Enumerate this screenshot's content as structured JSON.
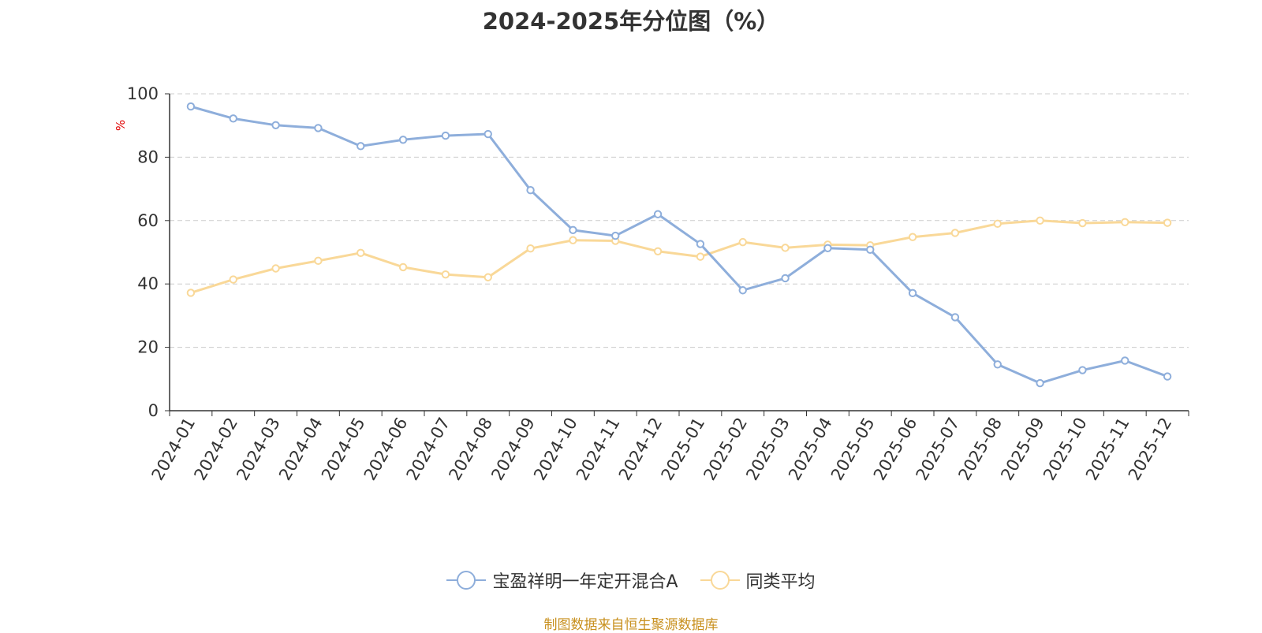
{
  "chart_data": {
    "type": "line",
    "title": "2024-2025年分位图（%）",
    "ylabel": "%",
    "xlabel": "",
    "ylim": [
      0,
      100
    ],
    "yticks": [
      0,
      20,
      40,
      60,
      80,
      100
    ],
    "grid": "horizontal dashed",
    "legend_position": "bottom",
    "categories": [
      "2024-01",
      "2024-02",
      "2024-03",
      "2024-04",
      "2024-05",
      "2024-06",
      "2024-07",
      "2024-08",
      "2024-09",
      "2024-10",
      "2024-11",
      "2024-12",
      "2025-01",
      "2025-02",
      "2025-03",
      "2025-04",
      "2025-05",
      "2025-06",
      "2025-07",
      "2025-08",
      "2025-09",
      "2025-10",
      "2025-11",
      "2025-12"
    ],
    "series": [
      {
        "name": "宝盈祥明一年定开混合A",
        "color": "#8eaedb",
        "values": [
          96,
          92.2,
          90.1,
          89.2,
          83.5,
          85.5,
          86.8,
          87.3,
          69.6,
          57,
          55.2,
          62,
          52.6,
          38,
          41.8,
          51.3,
          50.8,
          37.1,
          29.5,
          14.6,
          8.7,
          12.8,
          15.8,
          10.8
        ]
      },
      {
        "name": "同类平均",
        "color": "#f9d898",
        "values": [
          37.2,
          41.4,
          44.9,
          47.3,
          49.8,
          45.3,
          43.0,
          42.1,
          51.2,
          53.8,
          53.6,
          50.3,
          48.6,
          53.2,
          51.4,
          52.4,
          52.2,
          54.8,
          56.1,
          59.0,
          60.0,
          59.2,
          59.5,
          59.3
        ]
      }
    ]
  },
  "source_note": "制图数据来自恒生聚源数据库",
  "colors": {
    "axis": "#333333",
    "grid": "#cccccc",
    "ylabel": "#e00000",
    "source": "#c8901e"
  }
}
